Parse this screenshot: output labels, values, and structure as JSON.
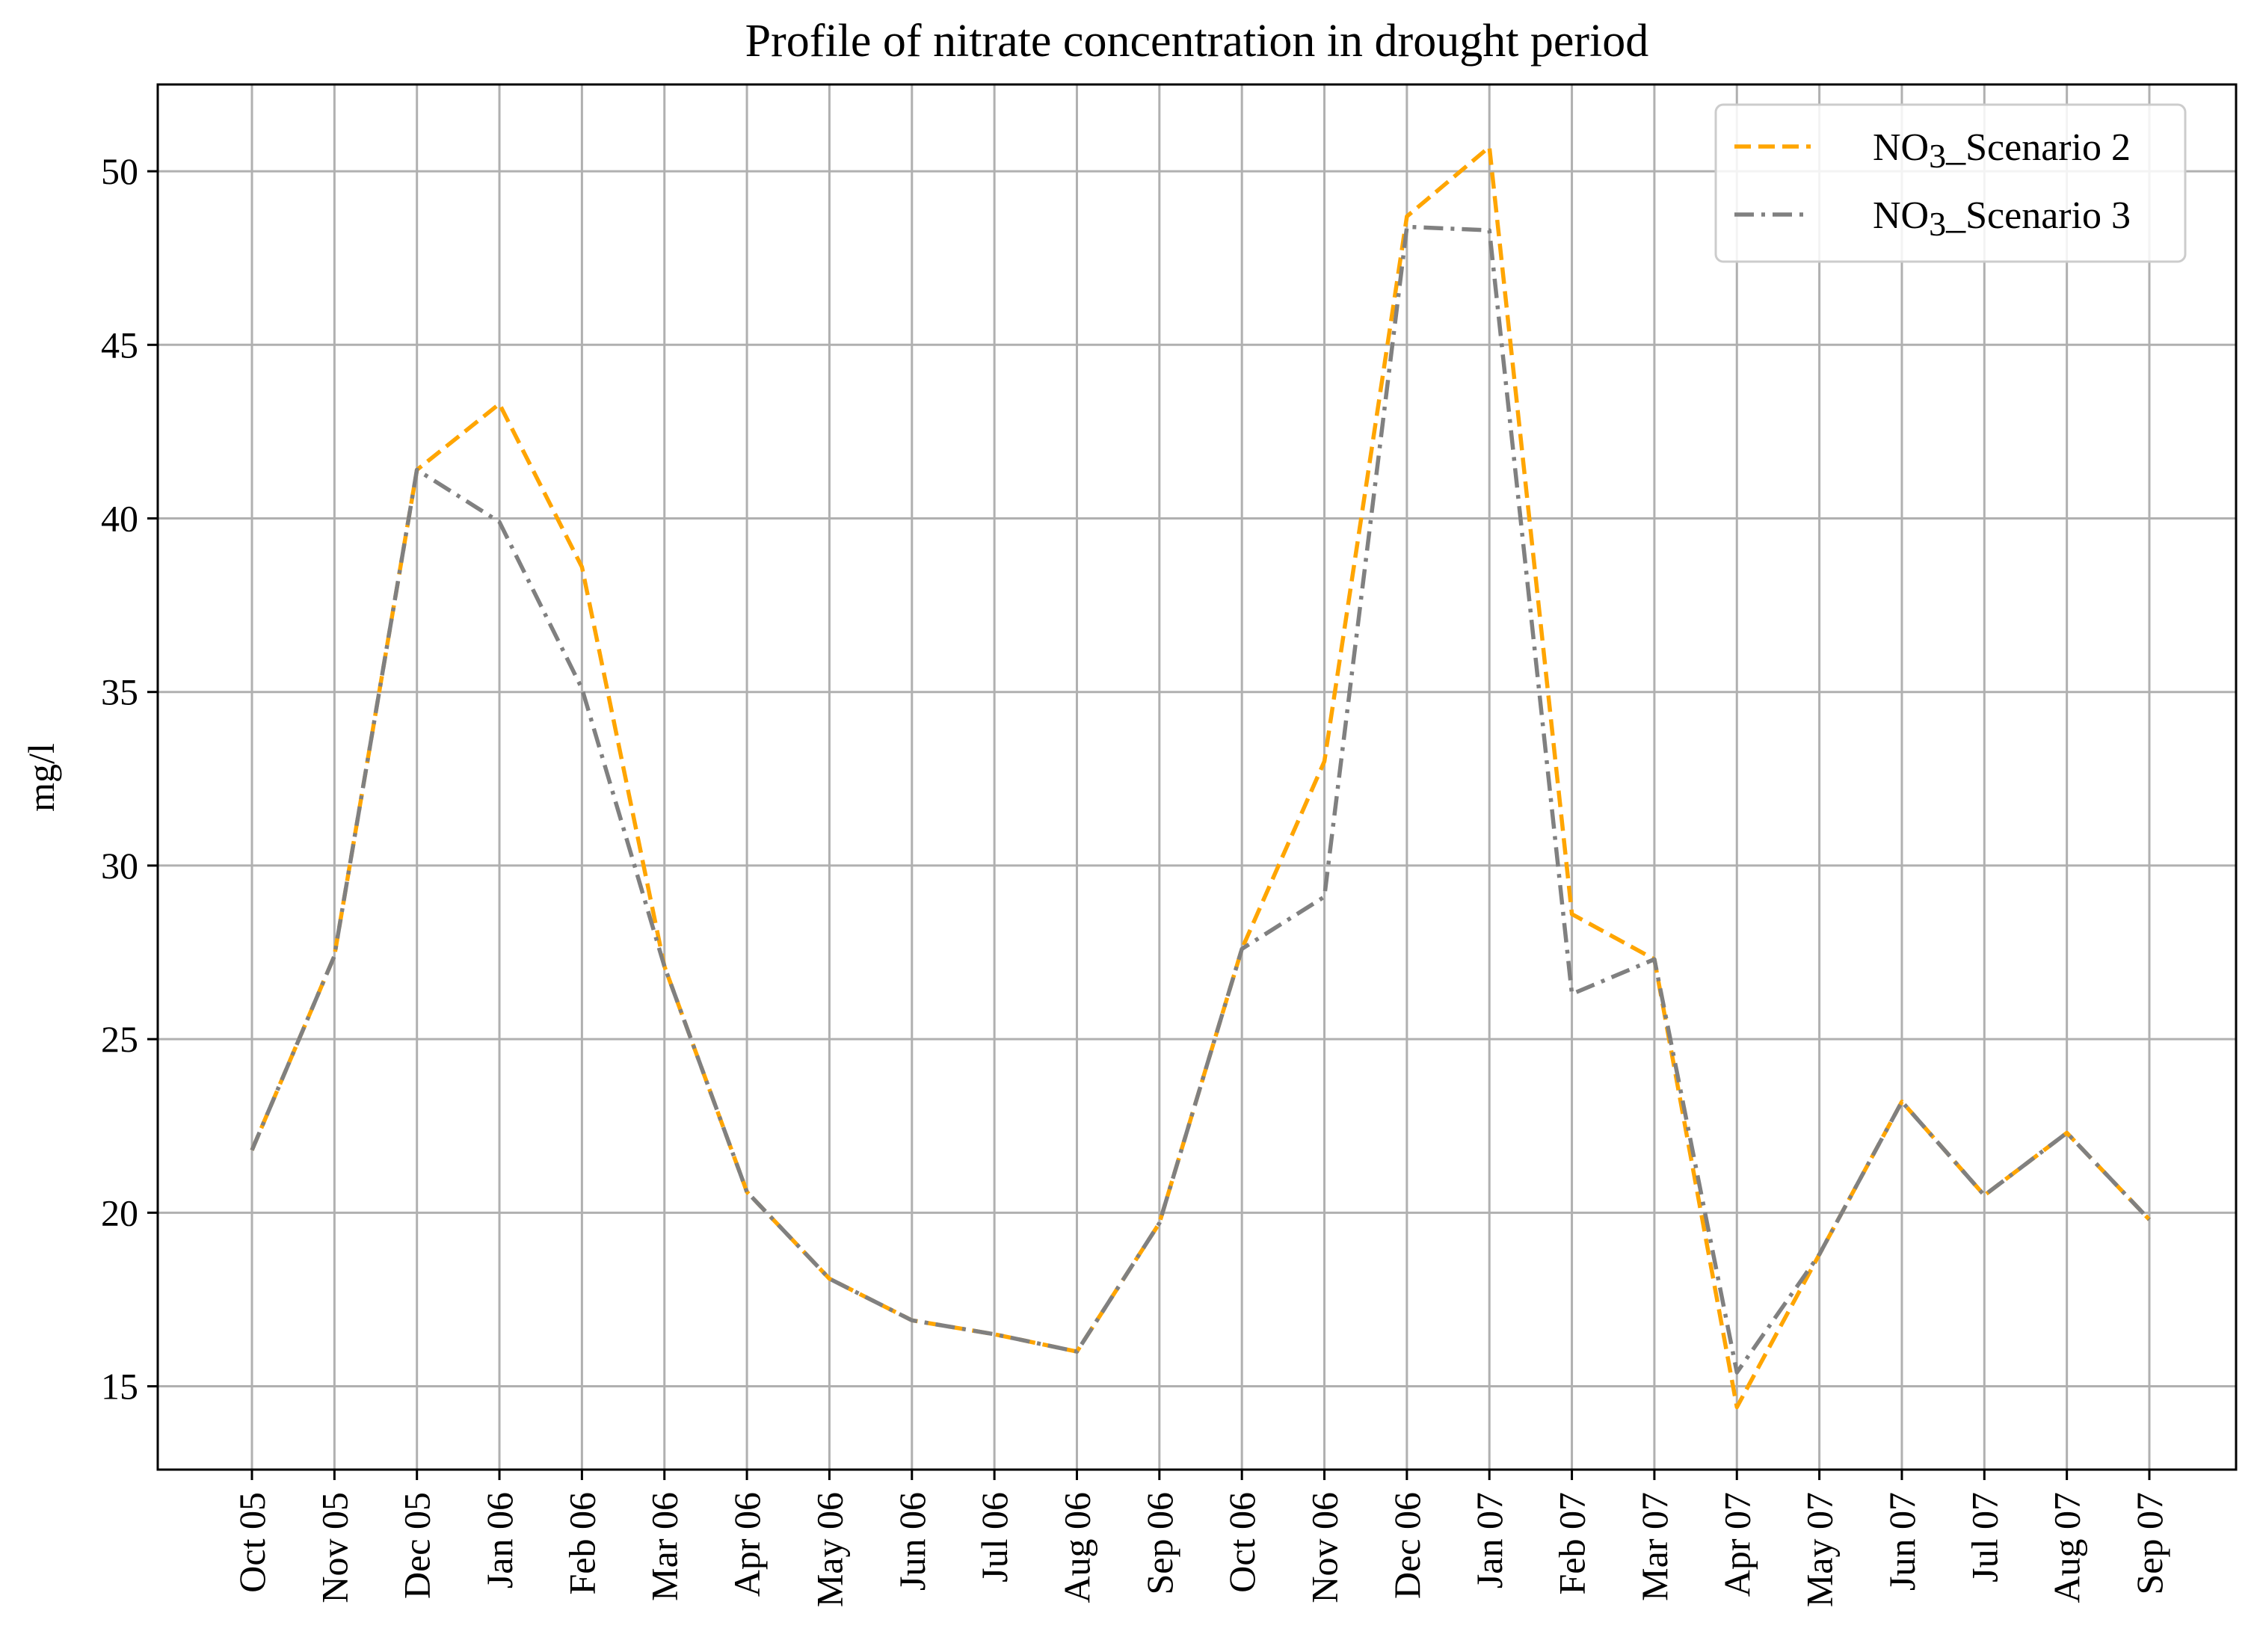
{
  "chart_data": {
    "type": "line",
    "title": "Profile of nitrate concentration in drought period",
    "xlabel": "",
    "ylabel": "mg/l",
    "ylim": [
      12.6,
      52.5
    ],
    "yticks": [
      15,
      20,
      25,
      30,
      35,
      40,
      45,
      50
    ],
    "grid": true,
    "legend_position": "top-right",
    "categories": [
      "Oct 05",
      "Nov 05",
      "Dec 05",
      "Jan 06",
      "Feb 06",
      "Mar 06",
      "Apr 06",
      "May 06",
      "Jun 06",
      "Jul 06",
      "Aug 06",
      "Sep 06",
      "Oct 06",
      "Nov 06",
      "Dec 06",
      "Jan 07",
      "Feb 07",
      "Mar 07",
      "Apr 07",
      "May 07",
      "Jun 07",
      "Jul 07",
      "Aug 07",
      "Sep 07"
    ],
    "series": [
      {
        "name_prefix": "NO",
        "name_sub": "3",
        "name_suffix": "_Scenario 2",
        "color": "#FFA500",
        "dash": "dashed",
        "values": [
          21.8,
          27.4,
          41.4,
          43.3,
          38.6,
          27.1,
          20.6,
          18.1,
          16.9,
          16.5,
          16.0,
          19.7,
          27.6,
          33.0,
          48.7,
          50.7,
          28.6,
          27.3,
          14.4,
          18.8,
          23.2,
          20.5,
          22.3,
          19.8
        ]
      },
      {
        "name_prefix": "NO",
        "name_sub": "3",
        "name_suffix": "_Scenario 3",
        "color": "#808080",
        "dash": "dashdot",
        "values": [
          21.8,
          27.4,
          41.4,
          39.9,
          35.1,
          27.1,
          20.6,
          18.1,
          16.9,
          16.5,
          16.0,
          19.7,
          27.6,
          29.1,
          48.4,
          48.3,
          26.3,
          27.3,
          15.4,
          18.8,
          23.2,
          20.5,
          22.3,
          19.8
        ]
      }
    ]
  }
}
